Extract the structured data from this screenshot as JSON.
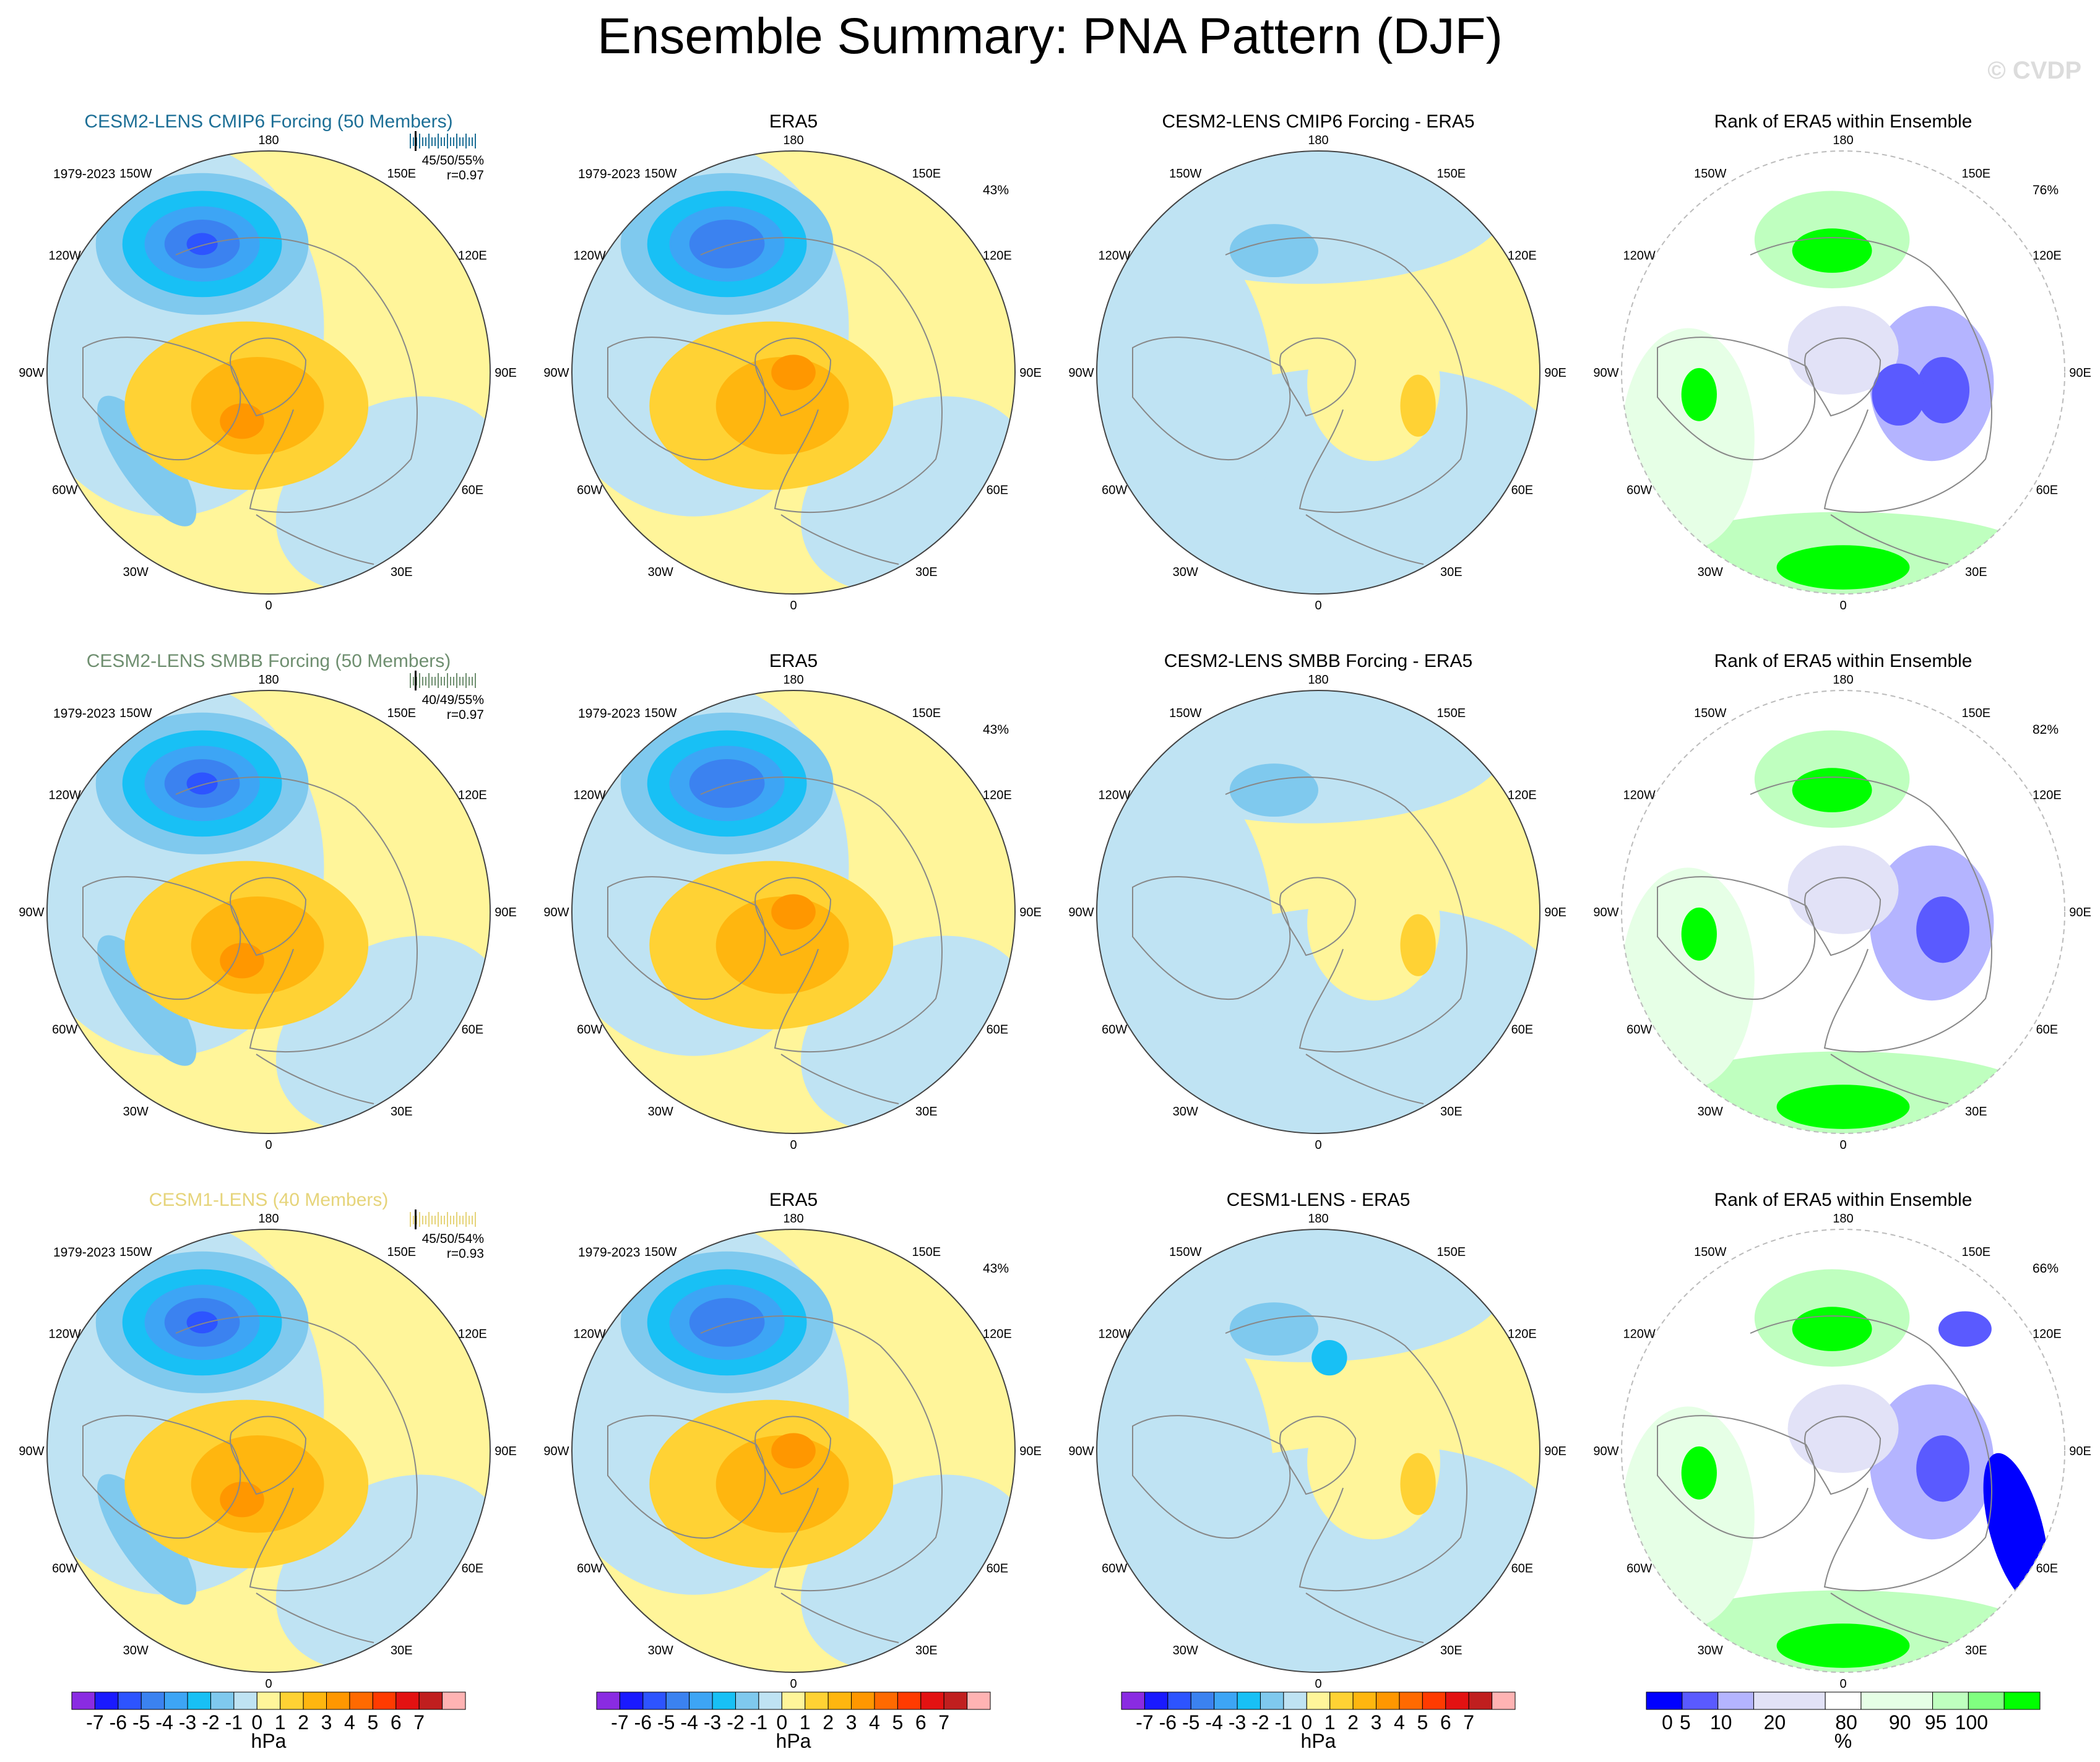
{
  "title": "Ensemble Summary: PNA Pattern (DJF)",
  "watermark": "© CVDP",
  "period": "1979-2023",
  "lon_labels": [
    "180",
    "150E",
    "120E",
    "90E",
    "60E",
    "30E",
    "0",
    "30W",
    "60W",
    "90W",
    "120W",
    "150W"
  ],
  "colors": {
    "model_titles": [
      "#1d6f96",
      "#6f8f70",
      "#e6d47a"
    ],
    "hpa": [
      "#8a2be2",
      "#1a1aff",
      "#2d54ff",
      "#3b82f0",
      "#3da5f5",
      "#18c0f5",
      "#7fc9ee",
      "#bfe3f3",
      "#fff59a",
      "#ffd234",
      "#ffb60f",
      "#ff9700",
      "#ff6a00",
      "#ff3b00",
      "#e31212",
      "#c01f1f",
      "#ffb3b3"
    ],
    "rank": [
      "#0000ff",
      "#5a5aff",
      "#b4b4ff",
      "#e2e2f7",
      "#ffffff",
      "#e6ffe6",
      "#bfffbf",
      "#80ff80",
      "#00ff00"
    ]
  },
  "rows": [
    {
      "model_title": "CESM2-LENS CMIP6 Forcing (50 Members)",
      "model_stats": [
        "45/50/55%",
        "r=0.97"
      ],
      "obs_title": "ERA5",
      "obs_pct": "43%",
      "diff_title": "CESM2-LENS CMIP6 Forcing - ERA5",
      "rank_title": "Rank of ERA5 within Ensemble",
      "rank_pct": "76%"
    },
    {
      "model_title": "CESM2-LENS SMBB Forcing (50 Members)",
      "model_stats": [
        "40/49/55%",
        "r=0.97"
      ],
      "obs_title": "ERA5",
      "obs_pct": "43%",
      "diff_title": "CESM2-LENS SMBB Forcing - ERA5",
      "rank_title": "Rank of ERA5 within Ensemble",
      "rank_pct": "82%"
    },
    {
      "model_title": "CESM1-LENS (40 Members)",
      "model_stats": [
        "45/50/54%",
        "r=0.93"
      ],
      "obs_title": "ERA5",
      "obs_pct": "43%",
      "diff_title": "CESM1-LENS - ERA5",
      "rank_title": "Rank of ERA5 within Ensemble",
      "rank_pct": "66%"
    }
  ],
  "chart_data": [
    {
      "type": "heatmap",
      "projection": "polar stereographic (Northern Hemisphere)",
      "variable": "PNA pattern sea level pressure regression",
      "columns": [
        "model ensemble mean",
        "ERA5 observations",
        "model minus ERA5",
        "rank of ERA5 within ensemble"
      ],
      "rows": [
        "CESM2-LENS CMIP6 Forcing (50 Members)",
        "CESM2-LENS SMBB Forcing (50 Members)",
        "CESM1-LENS (40 Members)"
      ],
      "season": "DJF",
      "period": "1979-2023",
      "percent_variance_explained": {
        "CESM2-LENS CMIP6 Forcing": "45/50/55%",
        "CESM2-LENS SMBB Forcing": "40/49/55%",
        "CESM1-LENS": "45/50/54%",
        "ERA5": "43%"
      },
      "pattern_correlation": {
        "CESM2-LENS CMIP6 Forcing": 0.97,
        "CESM2-LENS SMBB Forcing": 0.97,
        "CESM1-LENS": 0.93
      },
      "rank_percent": {
        "CESM2-LENS CMIP6 Forcing": 76,
        "CESM2-LENS SMBB Forcing": 82,
        "CESM1-LENS": 66
      },
      "colorbar_hpa": {
        "tick_labels": [
          "-7",
          "-6",
          "-5",
          "-4",
          "-3",
          "-2",
          "-1",
          "0",
          "1",
          "2",
          "3",
          "4",
          "5",
          "6",
          "7"
        ],
        "unit": "hPa"
      },
      "colorbar_rank": {
        "tick_labels": [
          "0",
          "5",
          "10",
          "20",
          "80",
          "90",
          "95",
          "100"
        ],
        "unit": "%"
      }
    }
  ]
}
